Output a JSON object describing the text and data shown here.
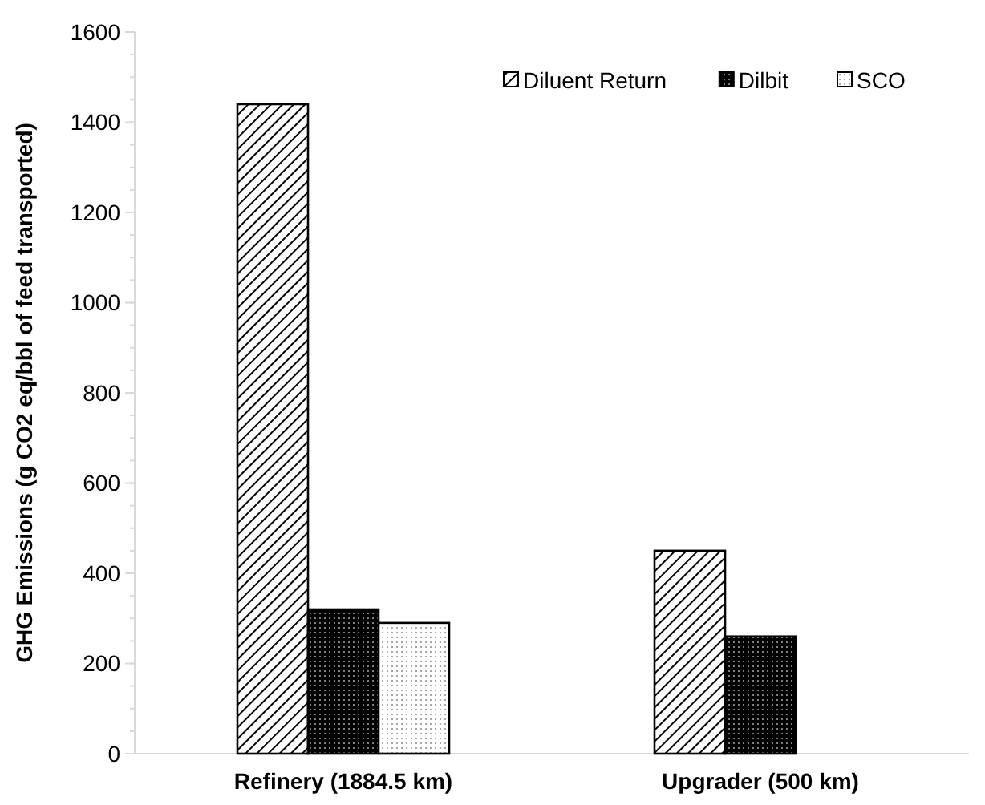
{
  "chart_data": {
    "type": "bar",
    "ylabel": "GHG Emissions (g CO2 eq/bbl of feed transported)",
    "categories": [
      "Refinery (1884.5 km)",
      "Upgrader (500 km)"
    ],
    "series": [
      {
        "name": "Diluent Return",
        "color": "#000000",
        "values": [
          1440,
          450
        ]
      },
      {
        "name": "Dilbit",
        "color": "#000000",
        "values": [
          320,
          260
        ]
      },
      {
        "name": "SCO",
        "color": "#000000",
        "values": [
          290,
          null
        ]
      }
    ],
    "ylim": [
      0,
      1600
    ],
    "yticks": [
      0,
      200,
      400,
      600,
      800,
      1000,
      1200,
      1400,
      1600
    ],
    "grid": false,
    "legend": "top right"
  }
}
